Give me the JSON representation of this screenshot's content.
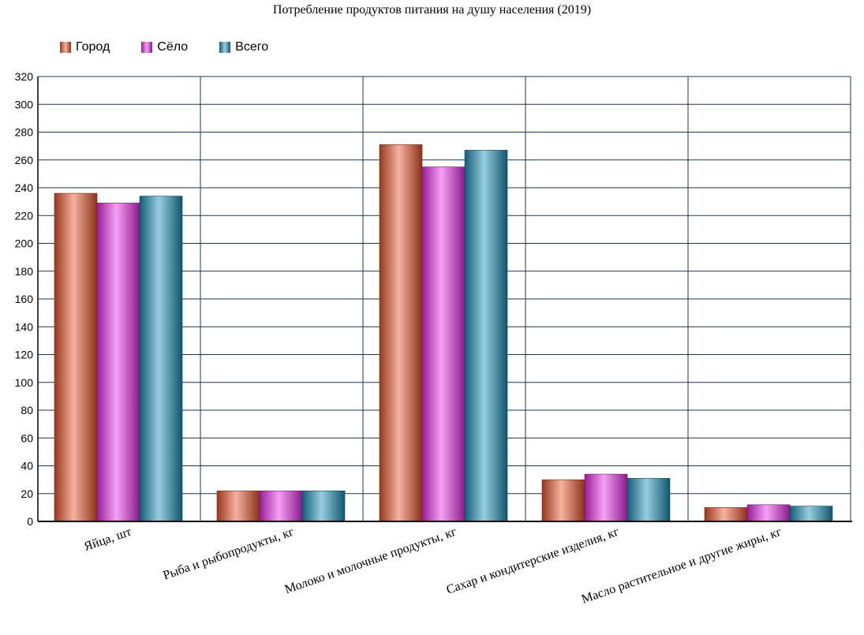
{
  "chart_data": {
    "type": "bar",
    "title": "Потребление продуктов питания на душу населения (2019)",
    "categories": [
      "Яйца, шт",
      "Рыба и рыбопродукты, кг",
      "Молоко и молочные продукты, кг",
      "Сахар и кондитерские изделия, кг",
      "Масло растительное и другие жиры, кг"
    ],
    "series": [
      {
        "name": "Город",
        "values": [
          236,
          22,
          271,
          30,
          10
        ],
        "color": "#e8542a"
      },
      {
        "name": "Сёло",
        "values": [
          229,
          22,
          255,
          34,
          12
        ],
        "color": "#e82ce8"
      },
      {
        "name": "Всего",
        "values": [
          234,
          22,
          267,
          31,
          11
        ],
        "color": "#1a8fb8"
      }
    ],
    "ylim": [
      0,
      320
    ],
    "yticks": [
      0,
      20,
      40,
      60,
      80,
      100,
      120,
      140,
      160,
      180,
      200,
      220,
      240,
      260,
      280,
      300,
      320
    ],
    "grid": true,
    "legend_position": "top-left"
  }
}
